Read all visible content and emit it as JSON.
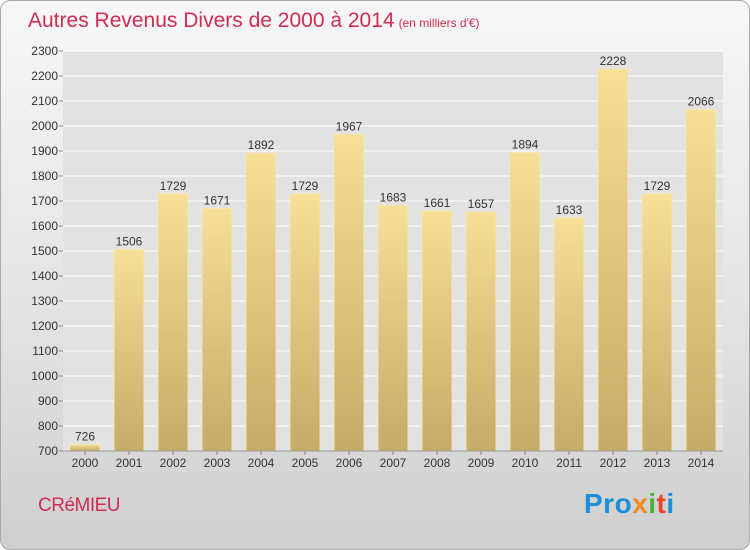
{
  "header": {
    "title": "Autres Revenus Divers de 2000 à 2014",
    "unit": "(en milliers d'€)"
  },
  "footer": {
    "town": "CRéMIEU",
    "logo": {
      "p1": "Pro",
      "p2": "x",
      "p3": "i",
      "p4": "t",
      "p5": "i"
    }
  },
  "colors": {
    "title": "#d12c52",
    "bar_top": "#f6df96",
    "bar_bottom": "#c4ab67",
    "grid": "#ffffff"
  },
  "chart_data": {
    "type": "bar",
    "categories": [
      "2000",
      "2001",
      "2002",
      "2003",
      "2004",
      "2005",
      "2006",
      "2007",
      "2008",
      "2009",
      "2010",
      "2011",
      "2012",
      "2013",
      "2014"
    ],
    "values": [
      726,
      1506,
      1729,
      1671,
      1892,
      1729,
      1967,
      1683,
      1661,
      1657,
      1894,
      1633,
      2228,
      1729,
      2066
    ],
    "ylim": [
      700,
      2300
    ],
    "yticks": [
      700,
      800,
      900,
      1000,
      1100,
      1200,
      1300,
      1400,
      1500,
      1600,
      1700,
      1800,
      1900,
      2000,
      2100,
      2200,
      2300
    ],
    "grid": true,
    "data_labels": true
  }
}
